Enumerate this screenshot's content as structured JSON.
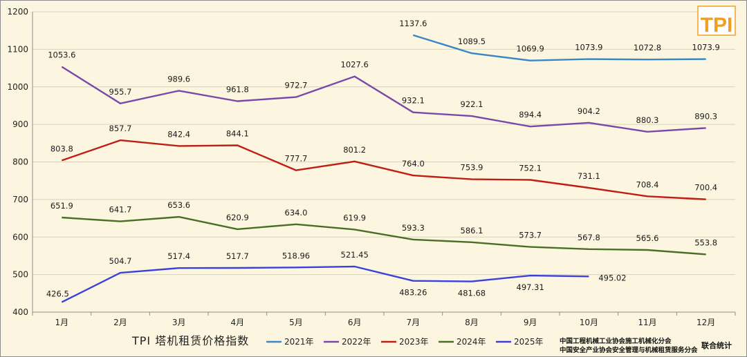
{
  "chart_data": {
    "type": "line",
    "title": "TPI 塔机租赁价格指数",
    "categories": [
      "1月",
      "2月",
      "3月",
      "4月",
      "5月",
      "6月",
      "7月",
      "8月",
      "9月",
      "10月",
      "11月",
      "12月"
    ],
    "ylim": [
      400,
      1200
    ],
    "yticks": [
      400,
      500,
      600,
      700,
      800,
      900,
      1000,
      1100,
      1200
    ],
    "grid": true,
    "legend_position": "bottom",
    "series": [
      {
        "name": "2021年",
        "color": "#3a86c4",
        "values": [
          null,
          null,
          null,
          null,
          null,
          null,
          1137.6,
          1089.5,
          1069.9,
          1073.9,
          1072.8,
          1073.9
        ],
        "labels": [
          null,
          null,
          null,
          null,
          null,
          null,
          "1137.6",
          "1089.5",
          "1069.9",
          "1073.9",
          "1072.8",
          "1073.9"
        ],
        "label_pos": [
          "above",
          "above",
          "above",
          "above",
          "above",
          "above",
          "above",
          "above",
          "above",
          "above",
          "above",
          "above"
        ]
      },
      {
        "name": "2022年",
        "color": "#7a48a8",
        "values": [
          1053.6,
          955.7,
          989.6,
          961.8,
          972.7,
          1027.6,
          932.1,
          922.1,
          894.4,
          904.2,
          880.3,
          890.3
        ],
        "labels": [
          "1053.6",
          "955.7",
          "989.6",
          "961.8",
          "972.7",
          "1027.6",
          "932.1",
          "922.1",
          "894.4",
          "904.2",
          "880.3",
          "890.3"
        ],
        "label_pos": [
          "above",
          "above",
          "above",
          "above",
          "above",
          "above",
          "above",
          "above",
          "above",
          "above",
          "above",
          "above"
        ]
      },
      {
        "name": "2023年",
        "color": "#c01e14",
        "values": [
          803.8,
          857.7,
          842.4,
          844.1,
          777.7,
          801.2,
          764.0,
          753.9,
          752.1,
          731.1,
          708.4,
          700.4
        ],
        "labels": [
          "803.8",
          "857.7",
          "842.4",
          "844.1",
          "777.7",
          "801.2",
          "764.0",
          "753.9",
          "752.1",
          "731.1",
          "708.4",
          "700.4"
        ],
        "label_pos": [
          "above",
          "above",
          "above",
          "above",
          "above",
          "above",
          "above",
          "above",
          "above",
          "above",
          "above",
          "above"
        ]
      },
      {
        "name": "2024年",
        "color": "#4a6e26",
        "values": [
          651.9,
          641.7,
          653.6,
          620.9,
          634.0,
          619.9,
          593.3,
          586.1,
          573.7,
          567.8,
          565.6,
          553.8
        ],
        "labels": [
          "651.9",
          "641.7",
          "653.6",
          "620.9",
          "634.0",
          "619.9",
          "593.3",
          "586.1",
          "573.7",
          "567.8",
          "565.6",
          "553.8"
        ],
        "label_pos": [
          "above",
          "above",
          "above",
          "above",
          "above",
          "above",
          "above",
          "above",
          "above",
          "above",
          "above",
          "above"
        ]
      },
      {
        "name": "2025年",
        "color": "#3b3fdc",
        "values": [
          426.5,
          504.7,
          517.4,
          517.7,
          518.96,
          521.45,
          483.26,
          481.68,
          497.31,
          495.02,
          null,
          null
        ],
        "labels": [
          "426.5",
          "504.7",
          "517.4",
          "517.7",
          "518.96",
          "521.45",
          "483.26",
          "481.68",
          "497.31",
          "495.02",
          null,
          null
        ],
        "label_pos": [
          "above",
          "above",
          "above",
          "above",
          "above",
          "above",
          "below",
          "below",
          "below",
          "right",
          null,
          null
        ]
      }
    ]
  },
  "logo": {
    "text": "TPI",
    "color": "#f0a020"
  },
  "footer": {
    "org_line1": "中国工程机械工业协会施工机械化分会",
    "org_line2": "中国安全产业协会安全管理与机械租赁服务分会",
    "stat": "联合统计"
  }
}
